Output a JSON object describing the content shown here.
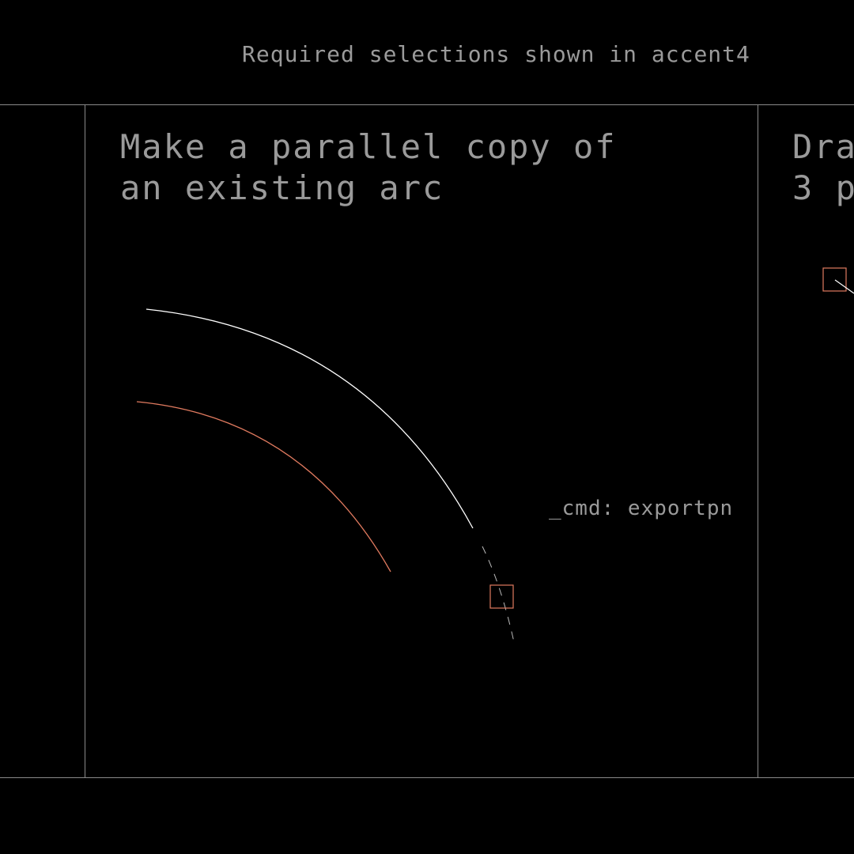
{
  "header": {
    "note": "Required selections shown in accent4"
  },
  "panels": [
    {
      "title_lines": [
        "Make a parallel copy of",
        "an existing arc"
      ],
      "command": "_cmd: exportpn"
    },
    {
      "title_lines": [
        "Dra",
        "3 p"
      ]
    }
  ],
  "colors": {
    "background": "#000000",
    "text": "#9a9a9a",
    "frame": "#8a8a8a",
    "source_arc": "#ffffff",
    "accent4": "#e07a5f"
  }
}
